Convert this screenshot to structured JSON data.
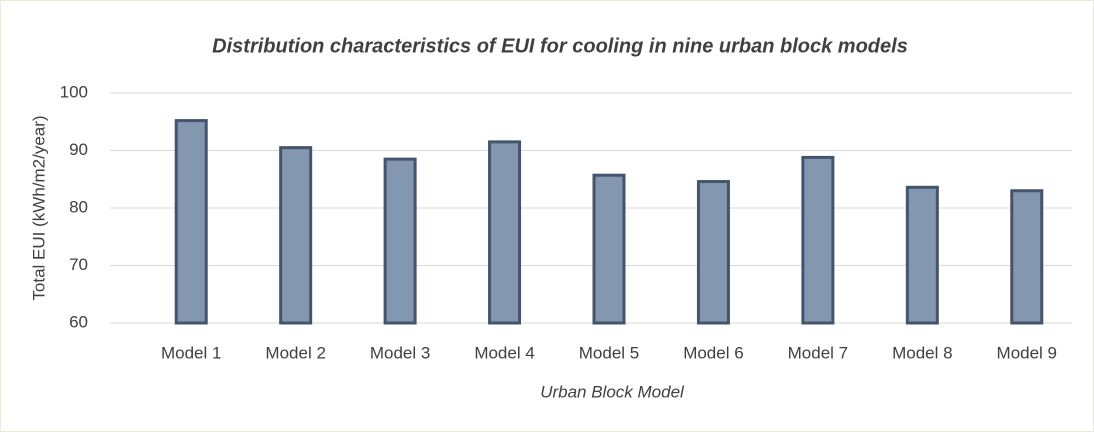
{
  "chart_data": {
    "type": "bar",
    "title": "Distribution characteristics of EUI for cooling in nine urban block models",
    "x_label": "Urban Block Model",
    "y_label": "Total EUI (kWh/m2/year)",
    "categories": [
      "Model 1",
      "Model 2",
      "Model 3",
      "Model 4",
      "Model 5",
      "Model 6",
      "Model 7",
      "Model 8",
      "Model 9"
    ],
    "values": [
      95.2,
      90.5,
      88.5,
      91.5,
      85.7,
      84.6,
      88.8,
      83.6,
      83.0
    ],
    "color": "#8497b0",
    "edge_color": "#44546a",
    "ylim": [
      60,
      100
    ],
    "yticks": [
      60,
      70,
      80,
      90,
      100
    ],
    "grid": true
  }
}
